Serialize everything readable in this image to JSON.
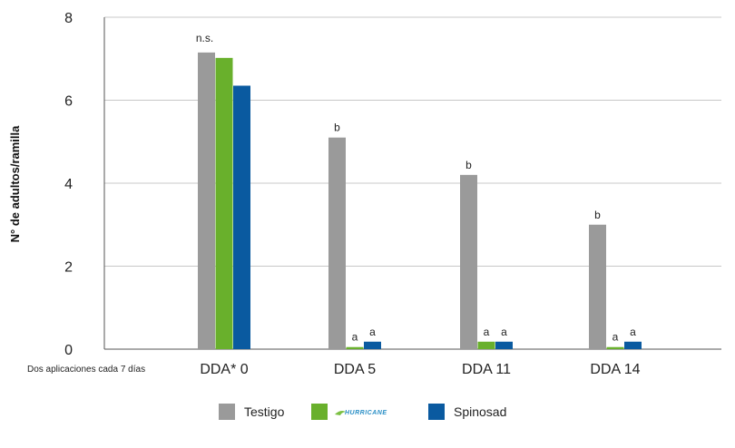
{
  "chart_data": {
    "type": "bar",
    "ylabel": "N° de adultos/ramilla",
    "x_note": "Dos aplicaciones cada 7 días",
    "ylim": [
      0,
      8
    ],
    "yticks": [
      "0",
      "2",
      "4",
      "6",
      "8"
    ],
    "grid": true,
    "legend_position": "bottom",
    "categories": [
      "DDA* 0",
      "DDA 5",
      "DDA 11",
      "DDA 14"
    ],
    "series": [
      {
        "name": "Testigo",
        "color": "#9a9a9a",
        "values": [
          7.15,
          5.1,
          4.2,
          3.0
        ]
      },
      {
        "name": "HURRICANE",
        "color": "#69b02c",
        "values": [
          7.02,
          0.05,
          0.18,
          0.05
        ]
      },
      {
        "name": "Spinosad",
        "color": "#0a5aa0",
        "values": [
          6.35,
          0.18,
          0.18,
          0.18
        ]
      }
    ],
    "significance": [
      {
        "category": 0,
        "labels": [
          "n.s.",
          "",
          ""
        ]
      },
      {
        "category": 1,
        "labels": [
          "b",
          "a",
          "a"
        ]
      },
      {
        "category": 2,
        "labels": [
          "b",
          "a",
          "a"
        ]
      },
      {
        "category": 3,
        "labels": [
          "b",
          "a",
          "a"
        ]
      }
    ]
  }
}
